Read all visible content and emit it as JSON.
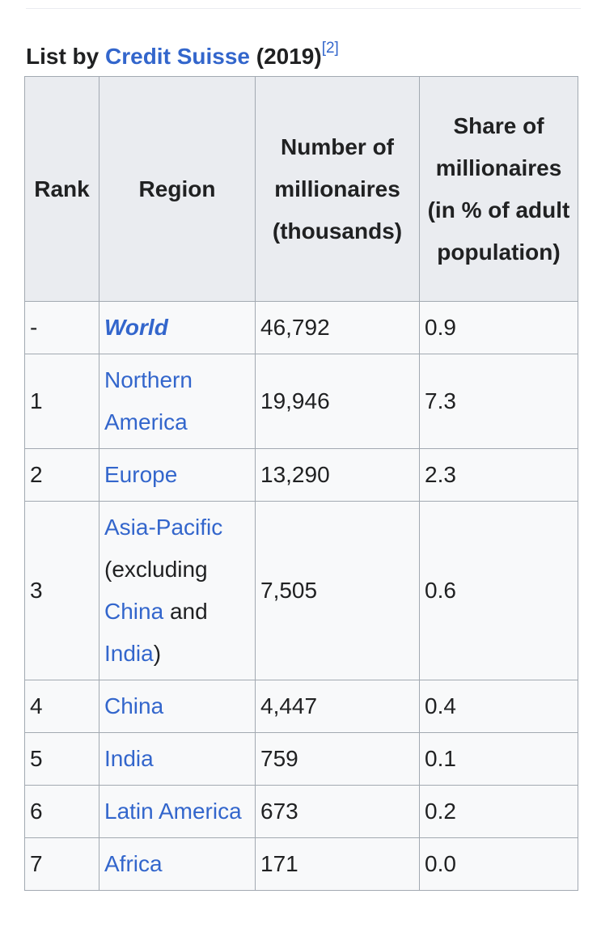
{
  "caption": {
    "prefix": "List by ",
    "source_link": "Credit Suisse",
    "suffix": " (2019)",
    "ref": "[2]"
  },
  "table": {
    "headers": {
      "rank": "Rank",
      "region": "Region",
      "number": "Number of millionaires (thousands)",
      "share": "Share of millionaires (in % of adult population)"
    },
    "rows": [
      {
        "rank": "-",
        "region": "World",
        "number": "46,792",
        "share": "0.9"
      },
      {
        "rank": "1",
        "region": "Northern America",
        "number": "19,946",
        "share": "7.3"
      },
      {
        "rank": "2",
        "region": "Europe",
        "number": "13,290",
        "share": "2.3"
      },
      {
        "rank": "3",
        "region_link1": "Asia-Pacific",
        "region_text1": " (excluding ",
        "region_link2": "China",
        "region_text2": " and ",
        "region_link3": "India",
        "region_text3": ")",
        "number": "7,505",
        "share": "0.6"
      },
      {
        "rank": "4",
        "region": "China",
        "number": "4,447",
        "share": "0.4"
      },
      {
        "rank": "5",
        "region": "India",
        "number": "759",
        "share": "0.1"
      },
      {
        "rank": "6",
        "region": "Latin America",
        "number": "673",
        "share": "0.2"
      },
      {
        "rank": "7",
        "region": "Africa",
        "number": "171",
        "share": "0.0"
      }
    ]
  }
}
